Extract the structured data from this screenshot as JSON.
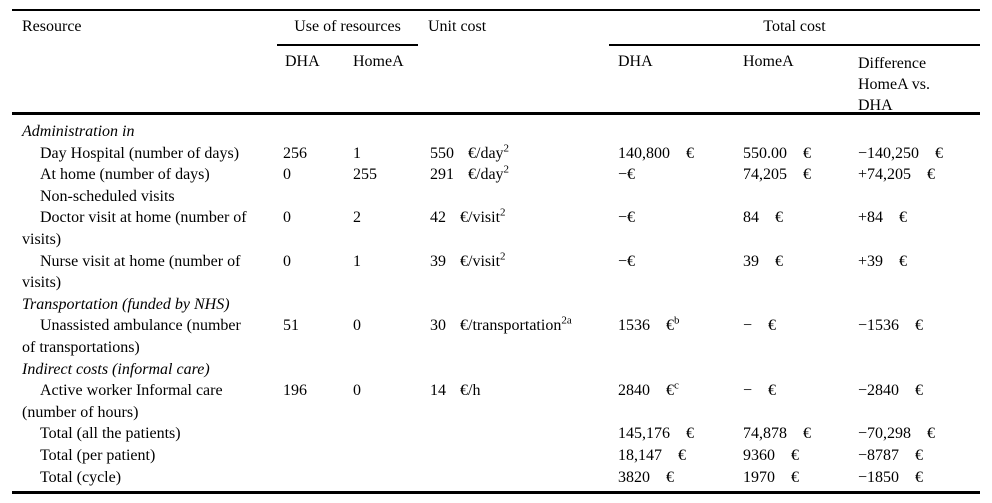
{
  "table": {
    "header": {
      "resource": "Resource",
      "use_group": "Use of resources",
      "unit_cost": "Unit cost",
      "total_group": "Total cost",
      "use_dha": "DHA",
      "use_homea": "HomeA",
      "total_dha": "DHA",
      "total_homea": "HomeA",
      "total_diff": "Difference HomeA vs. DHA"
    },
    "rows": [
      {
        "style": "section",
        "label": "Administration in"
      },
      {
        "style": "item",
        "label": "Day Hospital (number of days)",
        "use_dha": "256",
        "use_homea": "1",
        "unit_v": "550",
        "unit_u": "€/day",
        "unit_sup": "2",
        "dha_v": "140,800",
        "dha_c": "€",
        "homea_v": "550.00",
        "homea_c": "€",
        "diff_v": "−140,250",
        "diff_c": "€"
      },
      {
        "style": "item",
        "label": "At home (number of days)",
        "use_dha": "0",
        "use_homea": "255",
        "unit_v": "291",
        "unit_u": "€/day",
        "unit_sup": "2",
        "dha_v": "−€",
        "homea_v": "74,205",
        "homea_c": "€",
        "diff_v": "+74,205",
        "diff_c": "€"
      },
      {
        "style": "item",
        "label": "Non-scheduled visits"
      },
      {
        "style": "item",
        "label": "Doctor visit at home (number of\nvisits)",
        "use_dha": "0",
        "use_homea": "2",
        "unit_v": "42",
        "unit_u": "€/visit",
        "unit_sup": "2",
        "dha_v": "−€",
        "homea_v": "84",
        "homea_c": "€",
        "diff_v": "+84",
        "diff_c": "€"
      },
      {
        "style": "item",
        "label": "Nurse visit at home (number of\nvisits)",
        "use_dha": "0",
        "use_homea": "1",
        "unit_v": "39",
        "unit_u": "€/visit",
        "unit_sup": "2",
        "dha_v": "−€",
        "homea_v": "39",
        "homea_c": "€",
        "diff_v": "+39",
        "diff_c": "€"
      },
      {
        "style": "section",
        "label": "Transportation (funded by NHS)"
      },
      {
        "style": "item",
        "label": "Unassisted ambulance (number\nof transportations)",
        "use_dha": "51",
        "use_homea": "0",
        "unit_v": "30",
        "unit_u": "€/transportation",
        "unit_sup": "2a",
        "dha_v": "1536",
        "dha_c": "€",
        "dha_sup": "b",
        "homea_v": "−",
        "homea_c": "€",
        "diff_v": "−1536",
        "diff_c": "€"
      },
      {
        "style": "section",
        "label": "Indirect costs (informal care)"
      },
      {
        "style": "item",
        "label": "Active worker Informal care\n(number of hours)",
        "use_dha": "196",
        "use_homea": "0",
        "unit_v": "14",
        "unit_u": "€/h",
        "dha_v": "2840",
        "dha_c": "€",
        "dha_sup": "c",
        "homea_v": "−",
        "homea_c": "€",
        "diff_v": "−2840",
        "diff_c": "€"
      },
      {
        "style": "item",
        "label": "Total (all the patients)",
        "dha_v": "145,176",
        "dha_c": "€",
        "homea_v": "74,878",
        "homea_c": "€",
        "diff_v": "−70,298",
        "diff_c": "€"
      },
      {
        "style": "item",
        "label": "Total (per patient)",
        "dha_v": "18,147",
        "dha_c": "€",
        "homea_v": "9360",
        "homea_c": "€",
        "diff_v": "−8787",
        "diff_c": "€"
      },
      {
        "style": "item",
        "label": "Total (cycle)",
        "dha_v": "3820",
        "dha_c": "€",
        "homea_v": "1970",
        "homea_c": "€",
        "diff_v": "−1850",
        "diff_c": "€"
      }
    ]
  }
}
